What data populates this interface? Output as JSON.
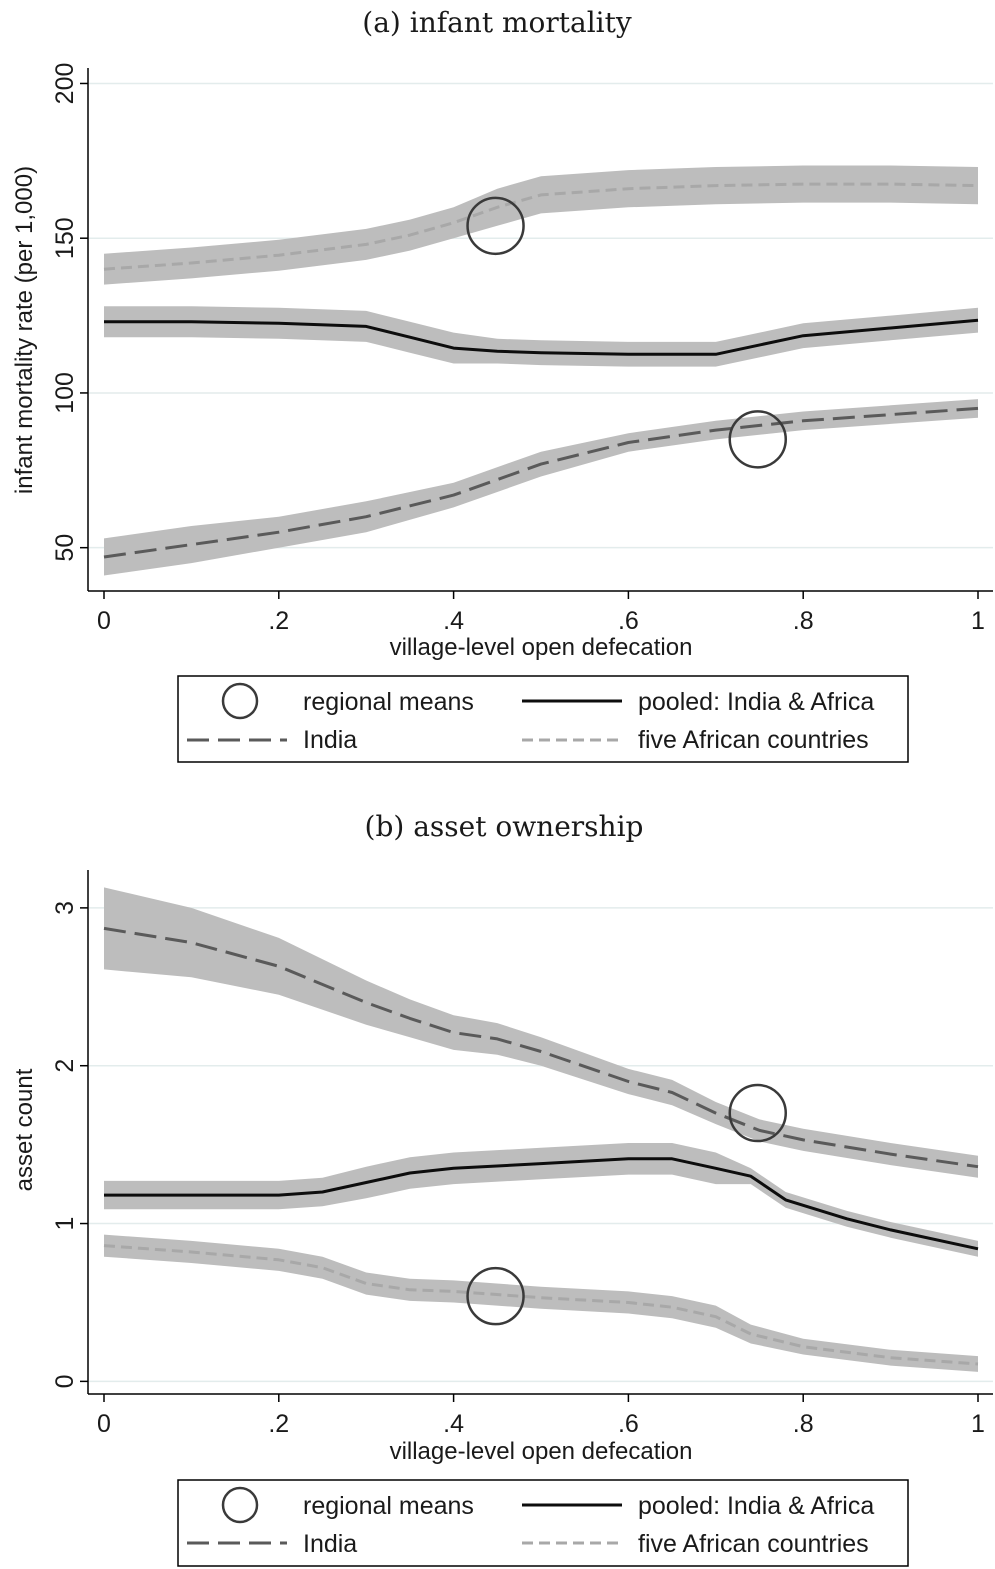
{
  "colors": {
    "band": "#bdbdbd",
    "pooled": "#0d0d0d",
    "india": "#5a5a5a",
    "africa": "#a8a8a8",
    "grid": "#e3ecec",
    "circle": "#3a3a3a"
  },
  "legend": {
    "regional_means": "regional means",
    "pooled": "pooled: India & Africa",
    "india": "India",
    "africa": "five African countries"
  },
  "chart_data": [
    {
      "type": "line",
      "title": "(a) infant mortality",
      "xlabel": "village-level open defecation",
      "ylabel": "infant mortality rate (per 1,000)",
      "xlim": [
        0,
        1
      ],
      "ylim": [
        36,
        205
      ],
      "xticks": [
        0,
        0.2,
        0.4,
        0.6,
        0.8,
        1
      ],
      "xtick_labels": [
        "0",
        ".2",
        ".4",
        ".6",
        ".8",
        "1"
      ],
      "yticks": [
        50,
        100,
        150,
        200
      ],
      "ytick_labels": [
        "50",
        "100",
        "150",
        "200"
      ],
      "grid": true,
      "legend_position": "bottom",
      "series": [
        {
          "key": "africa",
          "name": "five African countries",
          "style": "short-dash",
          "x": [
            0,
            0.1,
            0.2,
            0.3,
            0.35,
            0.4,
            0.45,
            0.5,
            0.6,
            0.7,
            0.8,
            0.9,
            1
          ],
          "y": [
            140,
            142,
            144.5,
            148,
            151,
            155,
            160,
            164,
            166,
            167,
            167.5,
            167.5,
            167
          ],
          "band": [
            5,
            5,
            5,
            5,
            5,
            5,
            6,
            6,
            6,
            6,
            6,
            6,
            6
          ]
        },
        {
          "key": "pooled",
          "name": "pooled: India & Africa",
          "style": "solid",
          "x": [
            0,
            0.1,
            0.2,
            0.3,
            0.35,
            0.4,
            0.45,
            0.5,
            0.6,
            0.7,
            0.8,
            0.9,
            1
          ],
          "y": [
            123,
            123,
            122.5,
            121.5,
            118,
            114.5,
            113.5,
            113,
            112.5,
            112.5,
            118.5,
            121,
            123.5
          ],
          "band": [
            5,
            5,
            5,
            5,
            5,
            5,
            4,
            4,
            4,
            4,
            4,
            4,
            4
          ]
        },
        {
          "key": "india",
          "name": "India",
          "style": "long-dash",
          "x": [
            0,
            0.1,
            0.2,
            0.3,
            0.4,
            0.5,
            0.6,
            0.7,
            0.8,
            0.9,
            1
          ],
          "y": [
            47,
            51,
            55,
            60,
            67,
            77,
            84,
            88,
            91,
            93,
            95
          ],
          "band": [
            6,
            6,
            5,
            5,
            4,
            4,
            3,
            3,
            3,
            3,
            3
          ]
        }
      ],
      "regional_means": [
        {
          "x": 0.448,
          "y": 154
        },
        {
          "x": 0.748,
          "y": 85
        }
      ]
    },
    {
      "type": "line",
      "title": "(b) asset ownership",
      "xlabel": "village-level open defecation",
      "ylabel": "asset count",
      "xlim": [
        0,
        1
      ],
      "ylim": [
        -0.08,
        3.24
      ],
      "xticks": [
        0,
        0.2,
        0.4,
        0.6,
        0.8,
        1
      ],
      "xtick_labels": [
        "0",
        ".2",
        ".4",
        ".6",
        ".8",
        "1"
      ],
      "yticks": [
        0,
        1,
        2,
        3
      ],
      "ytick_labels": [
        "0",
        "1",
        "2",
        "3"
      ],
      "grid": true,
      "legend_position": "bottom",
      "series": [
        {
          "key": "india",
          "name": "India",
          "style": "long-dash",
          "x": [
            0,
            0.1,
            0.2,
            0.3,
            0.35,
            0.4,
            0.45,
            0.5,
            0.6,
            0.65,
            0.7,
            0.75,
            0.8,
            0.9,
            1
          ],
          "y": [
            2.87,
            2.78,
            2.63,
            2.4,
            2.3,
            2.21,
            2.17,
            2.09,
            1.9,
            1.83,
            1.7,
            1.59,
            1.53,
            1.44,
            1.36
          ],
          "band": [
            0.26,
            0.22,
            0.18,
            0.14,
            0.12,
            0.11,
            0.1,
            0.09,
            0.08,
            0.08,
            0.07,
            0.07,
            0.07,
            0.07,
            0.07
          ]
        },
        {
          "key": "pooled",
          "name": "pooled: India & Africa",
          "style": "solid",
          "x": [
            0,
            0.1,
            0.2,
            0.25,
            0.3,
            0.35,
            0.4,
            0.5,
            0.6,
            0.65,
            0.7,
            0.74,
            0.78,
            0.85,
            0.9,
            1
          ],
          "y": [
            1.18,
            1.18,
            1.18,
            1.2,
            1.26,
            1.32,
            1.35,
            1.38,
            1.41,
            1.41,
            1.35,
            1.3,
            1.15,
            1.03,
            0.96,
            0.84
          ],
          "band": [
            0.09,
            0.09,
            0.09,
            0.09,
            0.1,
            0.1,
            0.1,
            0.1,
            0.1,
            0.1,
            0.1,
            0.05,
            0.05,
            0.05,
            0.05,
            0.05
          ]
        },
        {
          "key": "africa",
          "name": "five African countries",
          "style": "short-dash",
          "x": [
            0,
            0.1,
            0.2,
            0.25,
            0.3,
            0.35,
            0.4,
            0.5,
            0.6,
            0.65,
            0.7,
            0.74,
            0.8,
            0.9,
            1
          ],
          "y": [
            0.86,
            0.82,
            0.77,
            0.72,
            0.62,
            0.58,
            0.57,
            0.53,
            0.5,
            0.47,
            0.41,
            0.3,
            0.22,
            0.15,
            0.11
          ],
          "band": [
            0.07,
            0.07,
            0.07,
            0.07,
            0.07,
            0.07,
            0.07,
            0.07,
            0.07,
            0.07,
            0.07,
            0.06,
            0.05,
            0.05,
            0.05
          ]
        }
      ],
      "regional_means": [
        {
          "x": 0.448,
          "y": 0.54
        },
        {
          "x": 0.748,
          "y": 1.7
        }
      ]
    }
  ]
}
